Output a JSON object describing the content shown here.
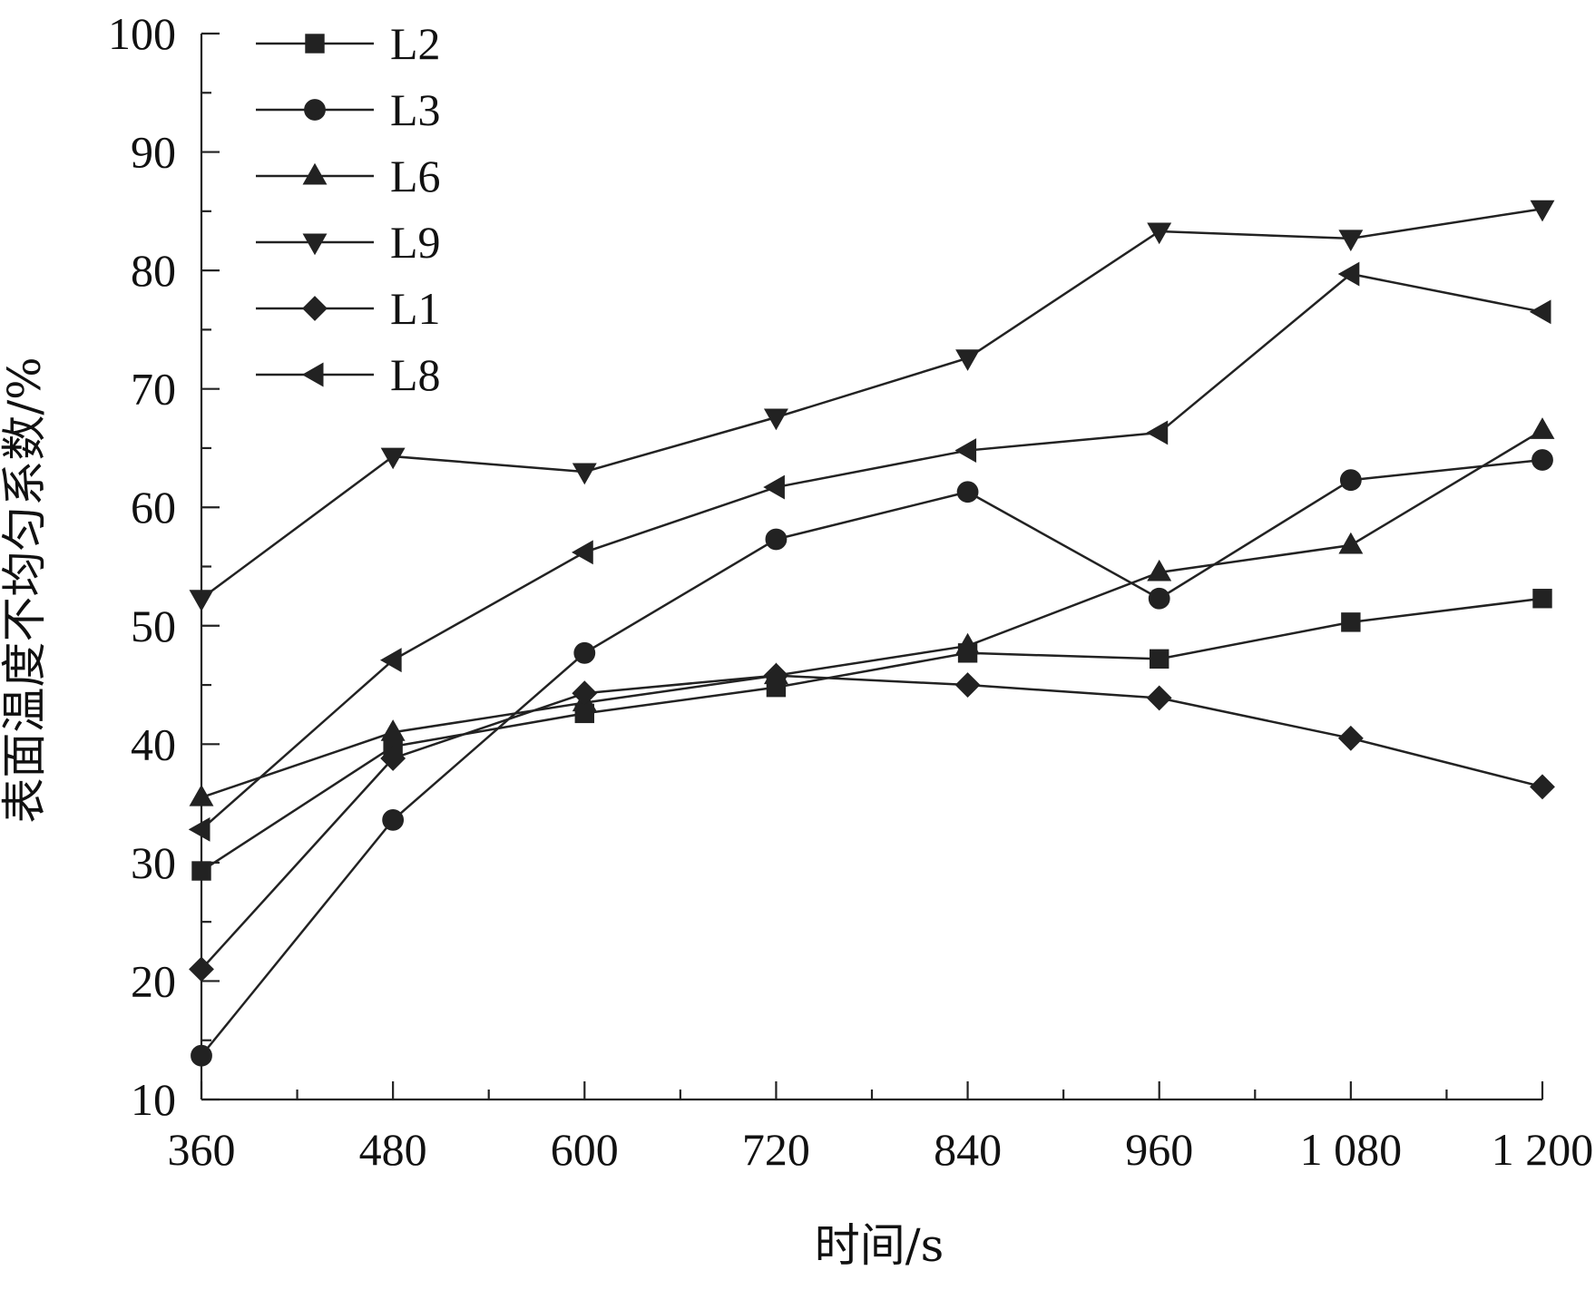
{
  "chart_data": {
    "type": "line",
    "xlabel": "时间/s",
    "ylabel": "表面温度不均匀系数/%",
    "x_ticks": [
      360,
      480,
      600,
      720,
      840,
      960,
      1080,
      1200
    ],
    "x_tick_labels": [
      "360",
      "480",
      "600",
      "720",
      "840",
      "960",
      "1 080",
      "1 200"
    ],
    "y_ticks": [
      10,
      20,
      30,
      40,
      50,
      60,
      70,
      80,
      90,
      100
    ],
    "y_tick_labels": [
      "10",
      "20",
      "30",
      "40",
      "50",
      "60",
      "70",
      "80",
      "90",
      "100"
    ],
    "xlim": [
      360,
      1200
    ],
    "ylim": [
      10,
      100
    ],
    "legend_position": "top-left",
    "grid": false,
    "x": [
      360,
      480,
      600,
      720,
      840,
      960,
      1080,
      1200
    ],
    "series": [
      {
        "name": "L2",
        "marker": "square",
        "values": [
          29.3,
          39.8,
          42.6,
          44.8,
          47.7,
          47.2,
          50.3,
          52.3
        ]
      },
      {
        "name": "L3",
        "marker": "circle",
        "values": [
          13.7,
          33.6,
          47.7,
          57.3,
          61.3,
          52.3,
          62.3,
          64.0
        ]
      },
      {
        "name": "L6",
        "marker": "triangle-up",
        "values": [
          35.5,
          41.0,
          43.5,
          45.8,
          48.3,
          54.5,
          56.8,
          66.5
        ]
      },
      {
        "name": "L9",
        "marker": "triangle-down",
        "values": [
          52.3,
          64.3,
          63.0,
          67.6,
          72.6,
          83.3,
          82.7,
          85.2
        ]
      },
      {
        "name": "L1",
        "marker": "diamond",
        "values": [
          21.0,
          38.8,
          44.3,
          45.8,
          45.0,
          43.9,
          40.5,
          36.4
        ]
      },
      {
        "name": "L8",
        "marker": "triangle-left",
        "values": [
          32.8,
          47.1,
          56.2,
          61.7,
          64.8,
          66.3,
          79.7,
          76.5
        ]
      }
    ],
    "minor_x_ticks": [
      420,
      540,
      660,
      780,
      900,
      1020,
      1140
    ]
  }
}
